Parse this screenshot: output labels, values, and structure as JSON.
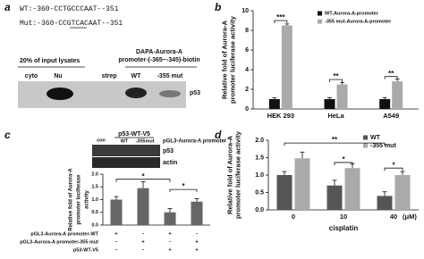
{
  "panels": {
    "a": "a",
    "b": "b",
    "c": "c",
    "d": "d"
  },
  "blot_a": {
    "sequences": [
      "WT:-360-CCTGCCCAAT--351",
      "Mut:-360-CCGTCACAAT--351"
    ],
    "input_label": "20% of input lysates",
    "dapa_label": [
      "DAPA-Aurora-A",
      "promoter-(-365~-345)-biotin"
    ],
    "lanes": [
      "cyto",
      "Nu",
      "strep",
      "WT",
      "-355 mut"
    ],
    "band_label": "p53"
  },
  "blot_c": {
    "top_label": "p53-WT-V5",
    "lanes": [
      "con",
      "WT",
      "-355mut"
    ],
    "side_label": "pGL3-Aurora-A promoter",
    "bands": [
      "p53",
      "actin"
    ]
  },
  "chart_data": [
    {
      "type": "bar",
      "ylabel": [
        "Relative fold of Aurora-A",
        "promoter luciferase activity"
      ],
      "categories": [
        "HEK 293",
        "HeLa",
        "A549"
      ],
      "series": [
        {
          "name": "WT-Aurora-A-promoter",
          "color": "#111111",
          "values": [
            1,
            1,
            1
          ],
          "errors": [
            0.15,
            0.15,
            0.15
          ]
        },
        {
          "name": "-355 mut-Aurora-A-promoter",
          "color": "#aaaaaa",
          "values": [
            8.5,
            2.5,
            2.8
          ],
          "errors": [
            0.15,
            0.2,
            0.25
          ]
        }
      ],
      "ylim": [
        0,
        10
      ],
      "yticks": [
        0,
        2,
        4,
        6,
        8,
        10
      ],
      "annotations": [
        "***",
        "**",
        "**"
      ],
      "legend": "top-right"
    },
    {
      "type": "bar",
      "ylabel": [
        "Relative fold of Aurora-A",
        "promoter luciferase",
        "activity"
      ],
      "values": [
        1.0,
        1.45,
        0.5,
        0.92
      ],
      "errors": [
        0.12,
        0.25,
        0.15,
        0.12
      ],
      "color": "#666666",
      "ylim": [
        0,
        2
      ],
      "yticks": [
        {
          "value": 0,
          "label": "0.0"
        },
        {
          "value": 0.5,
          "label": "0.5"
        },
        {
          "value": 1,
          "label": "1.0"
        },
        {
          "value": 1.5,
          "label": "1.5"
        },
        {
          "value": 2,
          "label": "2.0"
        }
      ],
      "rows": [
        {
          "label": "pGL3-Aurora-A promoter-WT",
          "signs": [
            "+",
            "-",
            "+",
            "-"
          ]
        },
        {
          "label": "pGL3-Aurora-A promoter-355 mut",
          "signs": [
            "-",
            "+",
            "-",
            "+"
          ]
        },
        {
          "label": "p53-WT-V5",
          "signs": [
            "-",
            "-",
            "+",
            "+"
          ]
        }
      ],
      "annotations": [
        "*",
        "*"
      ]
    },
    {
      "type": "bar",
      "ylabel": [
        "Relative fold  of Aurora-A",
        "promoter luciferase activity"
      ],
      "xlabel": "cisplatin",
      "xunit": "(μM)",
      "categories": [
        "0",
        "10",
        "40"
      ],
      "series": [
        {
          "name": "WT",
          "color": "#555555",
          "values": [
            1.0,
            0.7,
            0.4
          ],
          "errors": [
            0.1,
            0.15,
            0.12
          ]
        },
        {
          "name": "-355 mut",
          "color": "#aaaaaa",
          "values": [
            1.48,
            1.2,
            1.0
          ],
          "errors": [
            0.18,
            0.12,
            0.1
          ]
        }
      ],
      "ylim": [
        0,
        2
      ],
      "yticks": [
        {
          "value": 0,
          "label": "0.0"
        },
        {
          "value": 0.5,
          "label": "0.5"
        },
        {
          "value": 1,
          "label": "1.0"
        },
        {
          "value": 1.5,
          "label": "1.5"
        },
        {
          "value": 2,
          "label": "2.0"
        }
      ],
      "annotations": [
        "**",
        "*",
        "*"
      ],
      "legend": "top-right"
    }
  ]
}
